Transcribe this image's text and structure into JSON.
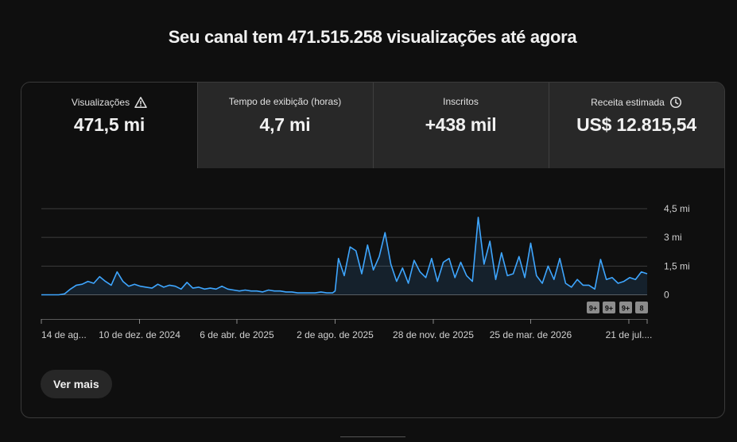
{
  "header": {
    "title": "Seu canal tem 471.515.258 visualizações até agora"
  },
  "tabs": [
    {
      "label": "Visualizações",
      "value": "471,5 mi",
      "icon": "warning-icon",
      "active": true
    },
    {
      "label": "Tempo de exibição (horas)",
      "value": "4,7 mi",
      "icon": "",
      "active": false
    },
    {
      "label": "Inscritos",
      "value": "+438 mil",
      "icon": "",
      "active": false
    },
    {
      "label": "Receita estimada",
      "value": "US$ 12.815,54",
      "icon": "clock-icon",
      "active": false
    }
  ],
  "chart_data": {
    "type": "area",
    "y_unit": "mi",
    "ylim": [
      0,
      4.5
    ],
    "y_ticks": [
      {
        "value": 0,
        "label": "0"
      },
      {
        "value": 1.5,
        "label": "1,5 mi"
      },
      {
        "value": 3,
        "label": "3 mi"
      },
      {
        "value": 4.5,
        "label": "4,5 mi"
      }
    ],
    "x_tick_labels": [
      "14 de ag...",
      "10 de dez. de 2024",
      "6 de abr. de 2025",
      "2 de ago. de 2025",
      "28 de nov. de 2025",
      "25 de mar. de 2026",
      "21 de jul...."
    ],
    "x_tick_dates": [
      "2024-08-14",
      "2024-12-10",
      "2025-04-06",
      "2025-08-02",
      "2025-11-28",
      "2026-03-25",
      "2026-07-21"
    ],
    "grid": true,
    "line_color": "#3ea6ff",
    "series": [
      {
        "x": [
          "2024-08-14",
          "2024-08-21",
          "2024-08-28",
          "2024-09-04",
          "2024-09-11",
          "2024-09-18",
          "2024-09-25",
          "2024-10-02",
          "2024-10-09",
          "2024-10-16",
          "2024-10-23",
          "2024-10-30",
          "2024-11-06",
          "2024-11-13",
          "2024-11-20",
          "2024-11-27",
          "2024-12-04",
          "2024-12-11",
          "2024-12-18",
          "2024-12-25",
          "2025-01-01",
          "2025-01-08",
          "2025-01-15",
          "2025-01-22",
          "2025-01-29",
          "2025-02-05",
          "2025-02-12",
          "2025-02-19",
          "2025-02-26",
          "2025-03-05",
          "2025-03-12",
          "2025-03-19",
          "2025-03-26",
          "2025-04-02",
          "2025-04-09",
          "2025-04-16",
          "2025-04-23",
          "2025-04-30",
          "2025-05-07",
          "2025-05-14",
          "2025-05-21",
          "2025-05-28",
          "2025-06-04",
          "2025-06-11",
          "2025-06-18",
          "2025-06-25",
          "2025-07-02",
          "2025-07-09",
          "2025-07-16",
          "2025-07-23",
          "2025-07-30",
          "2025-08-02",
          "2025-08-06",
          "2025-08-13",
          "2025-08-20",
          "2025-08-27",
          "2025-09-03",
          "2025-09-10",
          "2025-09-17",
          "2025-09-24",
          "2025-10-01",
          "2025-10-08",
          "2025-10-15",
          "2025-10-22",
          "2025-10-29",
          "2025-11-05",
          "2025-11-12",
          "2025-11-19",
          "2025-11-26",
          "2025-12-03",
          "2025-12-10",
          "2025-12-17",
          "2025-12-24",
          "2025-12-31",
          "2026-01-07",
          "2026-01-14",
          "2026-01-21",
          "2026-01-28",
          "2026-02-04",
          "2026-02-11",
          "2026-02-18",
          "2026-02-25",
          "2026-03-04",
          "2026-03-11",
          "2026-03-18",
          "2026-03-25",
          "2026-04-01",
          "2026-04-08",
          "2026-04-15",
          "2026-04-22",
          "2026-04-29",
          "2026-05-06",
          "2026-05-13",
          "2026-05-20",
          "2026-05-27",
          "2026-06-03",
          "2026-06-10",
          "2026-06-17",
          "2026-06-24",
          "2026-07-01",
          "2026-07-08",
          "2026-07-15",
          "2026-07-22",
          "2026-07-29",
          "2026-08-05",
          "2026-08-12"
        ],
        "values": [
          0.0,
          0.0,
          0.0,
          0.0,
          0.05,
          0.3,
          0.5,
          0.55,
          0.7,
          0.6,
          0.95,
          0.7,
          0.5,
          1.2,
          0.7,
          0.45,
          0.55,
          0.45,
          0.4,
          0.35,
          0.55,
          0.4,
          0.5,
          0.45,
          0.3,
          0.65,
          0.35,
          0.4,
          0.3,
          0.35,
          0.3,
          0.45,
          0.3,
          0.25,
          0.2,
          0.25,
          0.2,
          0.2,
          0.15,
          0.25,
          0.2,
          0.2,
          0.15,
          0.15,
          0.1,
          0.1,
          0.1,
          0.1,
          0.15,
          0.1,
          0.1,
          0.2,
          1.9,
          1.0,
          2.5,
          2.3,
          1.1,
          2.6,
          1.3,
          2.0,
          3.25,
          1.6,
          0.7,
          1.4,
          0.6,
          1.8,
          1.2,
          0.9,
          1.9,
          0.7,
          1.7,
          1.9,
          0.9,
          1.7,
          1.0,
          0.7,
          4.05,
          1.6,
          2.8,
          0.8,
          2.2,
          1.0,
          1.1,
          2.0,
          0.9,
          2.7,
          1.0,
          0.6,
          1.5,
          0.8,
          1.9,
          0.6,
          0.4,
          0.8,
          0.5,
          0.5,
          0.3,
          1.85,
          0.8,
          0.9,
          0.6,
          0.7,
          0.9,
          0.8,
          1.2,
          1.1
        ]
      }
    ]
  },
  "chart_badges": [
    "9+",
    "9+",
    "9+",
    "8"
  ],
  "footer": {
    "more_label": "Ver mais"
  }
}
